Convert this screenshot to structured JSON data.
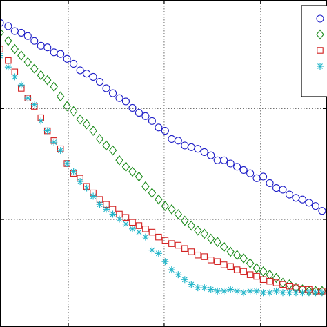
{
  "chart_data": {
    "type": "scatter",
    "title": "",
    "xlabel": "",
    "ylabel": "",
    "xlim": [
      0,
      1
    ],
    "ylim": [
      0,
      1
    ],
    "grid": true,
    "legend_placement": "top-right",
    "xgrid": [
      0.209,
      0.502,
      0.797
    ],
    "ygrid": [
      0.668,
      0.329
    ],
    "series": [
      {
        "marker": "circle",
        "color": "#2020c8",
        "x": [
          0.0,
          0.025,
          0.045,
          0.065,
          0.085,
          0.105,
          0.125,
          0.145,
          0.165,
          0.185,
          0.205,
          0.225,
          0.245,
          0.265,
          0.285,
          0.305,
          0.325,
          0.345,
          0.365,
          0.385,
          0.405,
          0.425,
          0.445,
          0.465,
          0.485,
          0.505,
          0.525,
          0.545,
          0.565,
          0.585,
          0.605,
          0.625,
          0.645,
          0.665,
          0.685,
          0.705,
          0.725,
          0.745,
          0.765,
          0.785,
          0.805,
          0.825,
          0.845,
          0.865,
          0.885,
          0.905,
          0.925,
          0.945,
          0.965,
          0.985
        ],
        "y": [
          0.93,
          0.92,
          0.905,
          0.9,
          0.89,
          0.875,
          0.86,
          0.855,
          0.84,
          0.835,
          0.82,
          0.805,
          0.785,
          0.775,
          0.765,
          0.75,
          0.73,
          0.715,
          0.7,
          0.69,
          0.67,
          0.655,
          0.645,
          0.63,
          0.61,
          0.6,
          0.575,
          0.57,
          0.555,
          0.55,
          0.545,
          0.535,
          0.525,
          0.51,
          0.51,
          0.5,
          0.49,
          0.48,
          0.47,
          0.455,
          0.46,
          0.44,
          0.425,
          0.42,
          0.405,
          0.395,
          0.39,
          0.38,
          0.37,
          0.355
        ]
      },
      {
        "marker": "diamond",
        "color": "#1a8a1a",
        "x": [
          0.0,
          0.025,
          0.045,
          0.065,
          0.085,
          0.105,
          0.125,
          0.145,
          0.165,
          0.185,
          0.205,
          0.225,
          0.245,
          0.265,
          0.285,
          0.305,
          0.325,
          0.345,
          0.365,
          0.385,
          0.405,
          0.425,
          0.445,
          0.465,
          0.485,
          0.505,
          0.525,
          0.545,
          0.565,
          0.585,
          0.605,
          0.625,
          0.645,
          0.665,
          0.685,
          0.705,
          0.725,
          0.745,
          0.765,
          0.785,
          0.805,
          0.825,
          0.845,
          0.865,
          0.885,
          0.905,
          0.925,
          0.945,
          0.965,
          0.985
        ],
        "y": [
          0.9,
          0.875,
          0.85,
          0.83,
          0.81,
          0.79,
          0.77,
          0.755,
          0.735,
          0.705,
          0.675,
          0.66,
          0.635,
          0.62,
          0.6,
          0.575,
          0.555,
          0.54,
          0.51,
          0.49,
          0.475,
          0.46,
          0.43,
          0.41,
          0.39,
          0.37,
          0.36,
          0.345,
          0.325,
          0.31,
          0.295,
          0.285,
          0.27,
          0.26,
          0.245,
          0.23,
          0.22,
          0.21,
          0.195,
          0.18,
          0.17,
          0.16,
          0.15,
          0.135,
          0.13,
          0.12,
          0.115,
          0.11,
          0.11,
          0.11
        ]
      },
      {
        "marker": "square",
        "color": "#d22020",
        "x": [
          0.0,
          0.025,
          0.045,
          0.065,
          0.085,
          0.105,
          0.125,
          0.145,
          0.165,
          0.185,
          0.205,
          0.225,
          0.245,
          0.265,
          0.285,
          0.305,
          0.325,
          0.345,
          0.365,
          0.385,
          0.405,
          0.425,
          0.445,
          0.465,
          0.485,
          0.505,
          0.525,
          0.545,
          0.565,
          0.585,
          0.605,
          0.625,
          0.645,
          0.665,
          0.685,
          0.705,
          0.725,
          0.745,
          0.765,
          0.785,
          0.805,
          0.825,
          0.845,
          0.865,
          0.885,
          0.905,
          0.925,
          0.945,
          0.965,
          0.985
        ],
        "y": [
          0.85,
          0.815,
          0.78,
          0.73,
          0.7,
          0.675,
          0.64,
          0.6,
          0.57,
          0.545,
          0.5,
          0.47,
          0.455,
          0.43,
          0.41,
          0.39,
          0.375,
          0.36,
          0.345,
          0.335,
          0.32,
          0.31,
          0.3,
          0.29,
          0.275,
          0.265,
          0.255,
          0.25,
          0.24,
          0.23,
          0.22,
          0.215,
          0.205,
          0.2,
          0.19,
          0.185,
          0.175,
          0.17,
          0.16,
          0.155,
          0.145,
          0.14,
          0.135,
          0.13,
          0.125,
          0.12,
          0.115,
          0.115,
          0.11,
          0.11
        ]
      },
      {
        "marker": "asterisk",
        "color": "#20b4c8",
        "x": [
          0.0,
          0.025,
          0.045,
          0.065,
          0.085,
          0.105,
          0.125,
          0.145,
          0.165,
          0.185,
          0.205,
          0.225,
          0.245,
          0.265,
          0.285,
          0.305,
          0.325,
          0.345,
          0.365,
          0.385,
          0.405,
          0.425,
          0.445,
          0.465,
          0.485,
          0.505,
          0.525,
          0.545,
          0.565,
          0.585,
          0.605,
          0.625,
          0.645,
          0.665,
          0.685,
          0.705,
          0.725,
          0.745,
          0.765,
          0.785,
          0.805,
          0.825,
          0.845,
          0.865,
          0.885,
          0.905,
          0.925,
          0.945,
          0.965,
          0.985
        ],
        "y": [
          0.83,
          0.795,
          0.765,
          0.74,
          0.7,
          0.68,
          0.63,
          0.6,
          0.565,
          0.54,
          0.5,
          0.475,
          0.445,
          0.425,
          0.4,
          0.375,
          0.36,
          0.345,
          0.33,
          0.315,
          0.3,
          0.29,
          0.275,
          0.235,
          0.225,
          0.2,
          0.175,
          0.16,
          0.145,
          0.13,
          0.12,
          0.12,
          0.115,
          0.11,
          0.11,
          0.115,
          0.11,
          0.105,
          0.11,
          0.11,
          0.105,
          0.105,
          0.11,
          0.105,
          0.105,
          0.105,
          0.105,
          0.105,
          0.105,
          0.105
        ]
      }
    ]
  }
}
